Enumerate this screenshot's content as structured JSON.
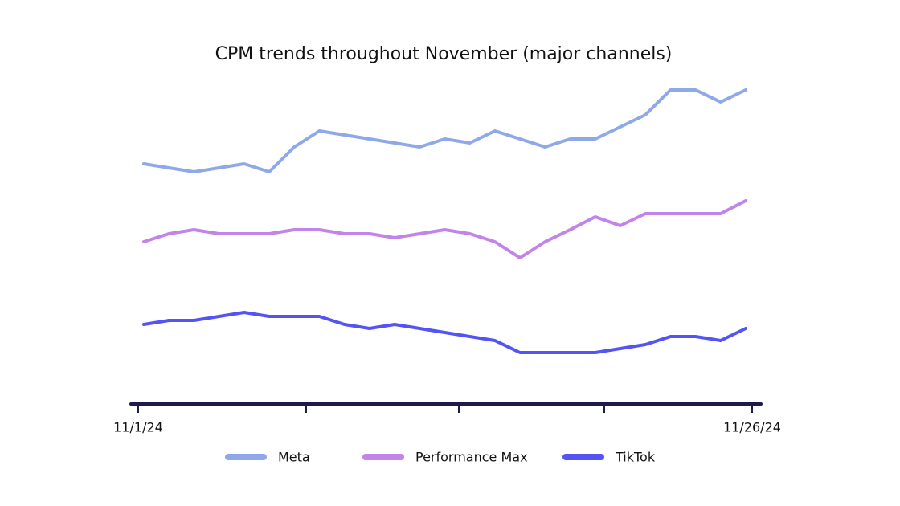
{
  "chart_data": {
    "type": "line",
    "title": "CPM trends throughout November (major channels)",
    "categories": [
      "11/1/24",
      null,
      null,
      null,
      null,
      null,
      null,
      null,
      null,
      null,
      null,
      null,
      null,
      null,
      null,
      null,
      null,
      null,
      null,
      null,
      null,
      null,
      null,
      null,
      "11/26/24"
    ],
    "series": [
      {
        "name": "Meta",
        "color": "#8fa8ea",
        "values": [
          299,
          294,
          289,
          294,
          299,
          289,
          320,
          340,
          335,
          330,
          325,
          320,
          330,
          325,
          340,
          330,
          320,
          330,
          330,
          345,
          360,
          391,
          391,
          376,
          391
        ]
      },
      {
        "name": "Performance Max",
        "color": "#c084ea",
        "values": [
          202,
          212,
          217,
          212,
          212,
          212,
          217,
          217,
          212,
          212,
          207,
          212,
          217,
          212,
          202,
          182,
          202,
          217,
          233,
          222,
          237,
          237,
          237,
          237,
          253
        ]
      },
      {
        "name": "TikTok",
        "color": "#5454f5",
        "values": [
          99,
          104,
          104,
          109,
          114,
          109,
          109,
          109,
          99,
          94,
          99,
          94,
          89,
          84,
          79,
          64,
          64,
          64,
          64,
          69,
          74,
          84,
          84,
          79,
          94
        ]
      }
    ],
    "ylim": [
      0,
      410
    ]
  }
}
